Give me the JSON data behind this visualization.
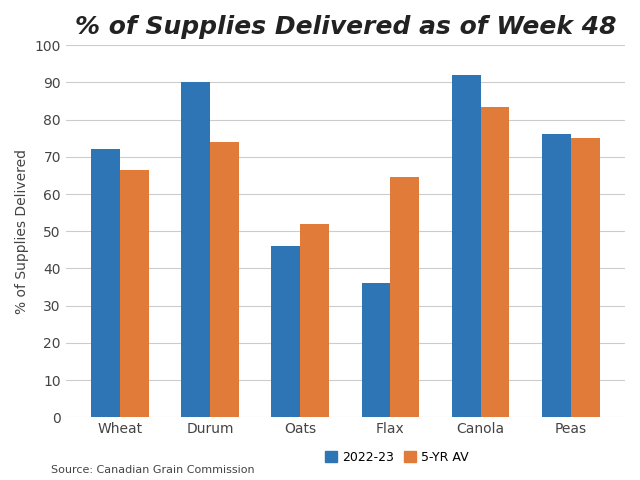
{
  "title": "% of Supplies Delivered as of Week 48",
  "categories": [
    "Wheat",
    "Durum",
    "Oats",
    "Flax",
    "Canola",
    "Peas"
  ],
  "values_2022_23": [
    72,
    90,
    46,
    36,
    92,
    76
  ],
  "values_5yr_av": [
    66.5,
    74,
    52,
    64.5,
    83.5,
    75
  ],
  "color_2022_23": "#2E75B6",
  "color_5yr_av": "#E07B39",
  "ylabel": "% of Supplies Delivered",
  "ylim": [
    0,
    100
  ],
  "yticks": [
    0,
    10,
    20,
    30,
    40,
    50,
    60,
    70,
    80,
    90,
    100
  ],
  "legend_2022_23": "2022-23",
  "legend_5yr_av": "5-YR AV",
  "source_text": "Source: Canadian Grain Commission",
  "background_color": "#ffffff",
  "bar_width": 0.32,
  "grid_color": "#cccccc",
  "title_fontsize": 18,
  "axis_label_fontsize": 10,
  "tick_fontsize": 10,
  "source_fontsize": 8,
  "legend_fontsize": 9
}
